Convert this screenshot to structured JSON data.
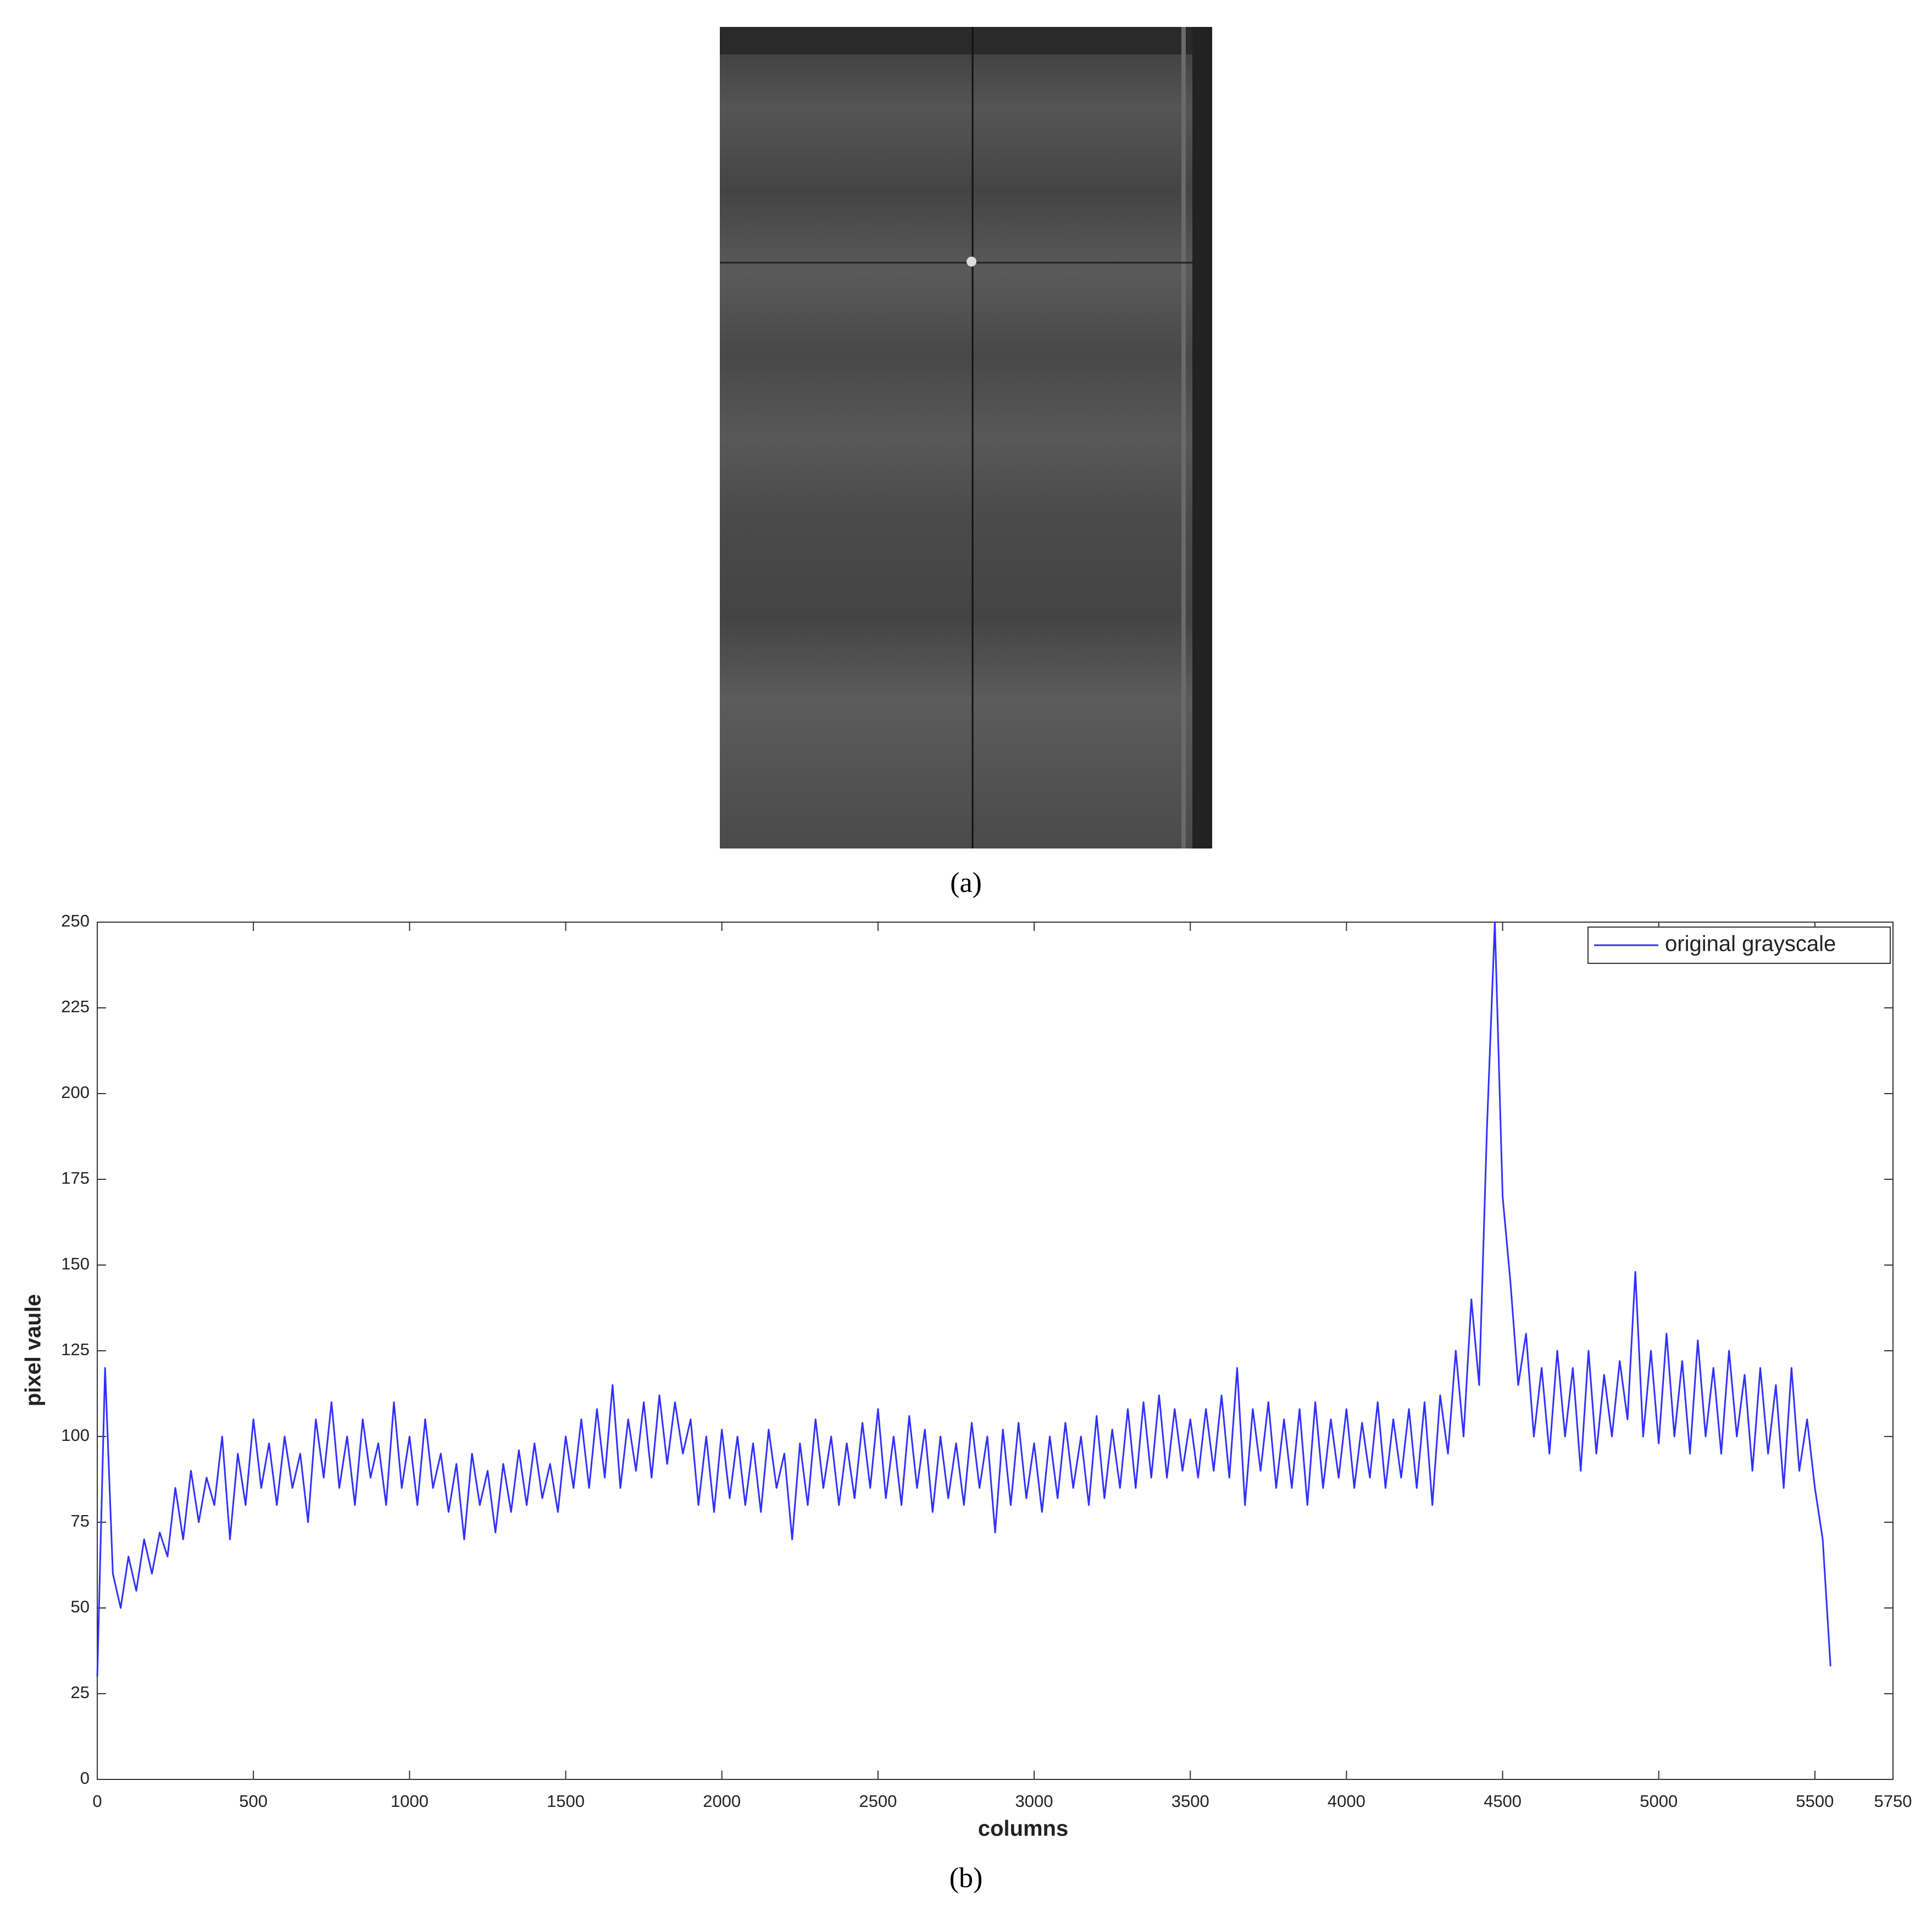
{
  "panel_a": {
    "caption": "(a)"
  },
  "panel_b": {
    "caption": "(b)"
  },
  "chart_data": {
    "type": "line",
    "xlabel": "columns",
    "ylabel": "pixel vaule",
    "xlim": [
      0,
      5750
    ],
    "xticks": [
      0,
      500,
      1000,
      1500,
      2000,
      2500,
      3000,
      3500,
      4000,
      4500,
      5000,
      5500,
      5750
    ],
    "ylim": [
      0,
      250
    ],
    "yticks": [
      0,
      25,
      50,
      75,
      100,
      125,
      150,
      175,
      200,
      225,
      250
    ],
    "legend": "upper right",
    "grid": false,
    "x": [
      0,
      25,
      50,
      75,
      100,
      125,
      150,
      175,
      200,
      225,
      250,
      275,
      300,
      325,
      350,
      375,
      400,
      425,
      450,
      475,
      500,
      525,
      550,
      575,
      600,
      625,
      650,
      675,
      700,
      725,
      750,
      775,
      800,
      825,
      850,
      875,
      900,
      925,
      950,
      975,
      1000,
      1025,
      1050,
      1075,
      1100,
      1125,
      1150,
      1175,
      1200,
      1225,
      1250,
      1275,
      1300,
      1325,
      1350,
      1375,
      1400,
      1425,
      1450,
      1475,
      1500,
      1525,
      1550,
      1575,
      1600,
      1625,
      1650,
      1675,
      1700,
      1725,
      1750,
      1775,
      1800,
      1825,
      1850,
      1875,
      1900,
      1925,
      1950,
      1975,
      2000,
      2025,
      2050,
      2075,
      2100,
      2125,
      2150,
      2175,
      2200,
      2225,
      2250,
      2275,
      2300,
      2325,
      2350,
      2375,
      2400,
      2425,
      2450,
      2475,
      2500,
      2525,
      2550,
      2575,
      2600,
      2625,
      2650,
      2675,
      2700,
      2725,
      2750,
      2775,
      2800,
      2825,
      2850,
      2875,
      2900,
      2925,
      2950,
      2975,
      3000,
      3025,
      3050,
      3075,
      3100,
      3125,
      3150,
      3175,
      3200,
      3225,
      3250,
      3275,
      3300,
      3325,
      3350,
      3375,
      3400,
      3425,
      3450,
      3475,
      3500,
      3525,
      3550,
      3575,
      3600,
      3625,
      3650,
      3675,
      3700,
      3725,
      3750,
      3775,
      3800,
      3825,
      3850,
      3875,
      3900,
      3925,
      3950,
      3975,
      4000,
      4025,
      4050,
      4075,
      4100,
      4125,
      4150,
      4175,
      4200,
      4225,
      4250,
      4275,
      4300,
      4325,
      4350,
      4375,
      4400,
      4425,
      4450,
      4475,
      4500,
      4525,
      4550,
      4575,
      4600,
      4625,
      4650,
      4675,
      4700,
      4725,
      4750,
      4775,
      4800,
      4825,
      4850,
      4875,
      4900,
      4925,
      4950,
      4975,
      5000,
      5025,
      5050,
      5075,
      5100,
      5125,
      5150,
      5175,
      5200,
      5225,
      5250,
      5275,
      5300,
      5325,
      5350,
      5375,
      5400,
      5425,
      5450,
      5475,
      5500,
      5525,
      5550
    ],
    "series": [
      {
        "name": "original grayscale",
        "color": "#3030ff",
        "values": [
          30,
          120,
          60,
          50,
          65,
          55,
          70,
          60,
          72,
          65,
          85,
          70,
          90,
          75,
          88,
          80,
          100,
          70,
          95,
          80,
          105,
          85,
          98,
          80,
          100,
          85,
          95,
          75,
          105,
          88,
          110,
          85,
          100,
          80,
          105,
          88,
          98,
          80,
          110,
          85,
          100,
          80,
          105,
          85,
          95,
          78,
          92,
          70,
          95,
          80,
          90,
          72,
          92,
          78,
          96,
          80,
          98,
          82,
          92,
          78,
          100,
          85,
          105,
          85,
          108,
          88,
          115,
          85,
          105,
          90,
          110,
          88,
          112,
          92,
          110,
          95,
          105,
          80,
          100,
          78,
          102,
          82,
          100,
          80,
          98,
          78,
          102,
          85,
          95,
          70,
          98,
          80,
          105,
          85,
          100,
          80,
          98,
          82,
          104,
          85,
          108,
          82,
          100,
          80,
          106,
          85,
          102,
          78,
          100,
          82,
          98,
          80,
          104,
          85,
          100,
          72,
          102,
          80,
          104,
          82,
          98,
          78,
          100,
          82,
          104,
          85,
          100,
          80,
          106,
          82,
          102,
          85,
          108,
          85,
          110,
          88,
          112,
          88,
          108,
          90,
          105,
          88,
          108,
          90,
          112,
          88,
          120,
          80,
          108,
          90,
          110,
          85,
          105,
          85,
          108,
          80,
          110,
          85,
          105,
          88,
          108,
          85,
          104,
          88,
          110,
          85,
          105,
          88,
          108,
          85,
          110,
          80,
          112,
          95,
          125,
          100,
          140,
          115,
          190,
          250,
          170,
          145,
          115,
          130,
          100,
          120,
          95,
          125,
          100,
          120,
          90,
          125,
          95,
          118,
          100,
          122,
          105,
          148,
          100,
          125,
          98,
          130,
          100,
          122,
          95,
          128,
          100,
          120,
          95,
          125,
          100,
          118,
          90,
          120,
          95,
          115,
          85,
          120,
          90,
          105,
          85,
          70,
          33
        ]
      }
    ]
  }
}
